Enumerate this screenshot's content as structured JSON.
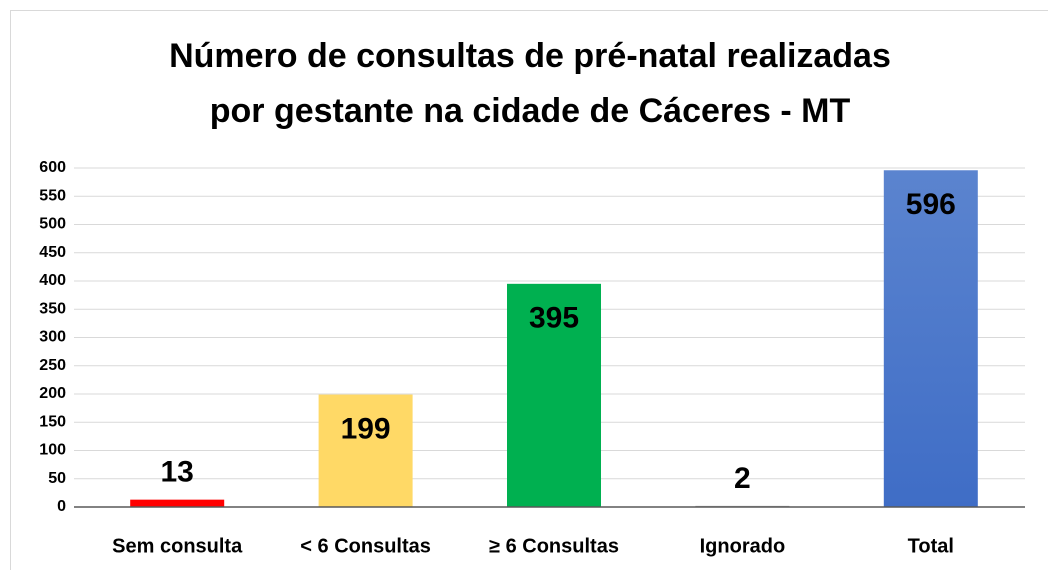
{
  "chart_data": {
    "type": "bar",
    "title": [
      "Número de consultas de pré-natal realizadas",
      "por gestante na cidade de Cáceres - MT"
    ],
    "categories": [
      "Sem consulta",
      "< 6 Consultas",
      "≥ 6 Consultas",
      "Ignorado",
      "Total"
    ],
    "values": [
      13,
      199,
      395,
      2,
      596
    ],
    "colors": [
      "#ff0000",
      "#ffd966",
      "#00b050",
      "#a5a5a5",
      "#4472c4"
    ],
    "ylim": [
      0,
      600
    ],
    "yticks": [
      0,
      50,
      100,
      150,
      200,
      250,
      300,
      350,
      400,
      450,
      500,
      550,
      600
    ],
    "grid": true
  }
}
